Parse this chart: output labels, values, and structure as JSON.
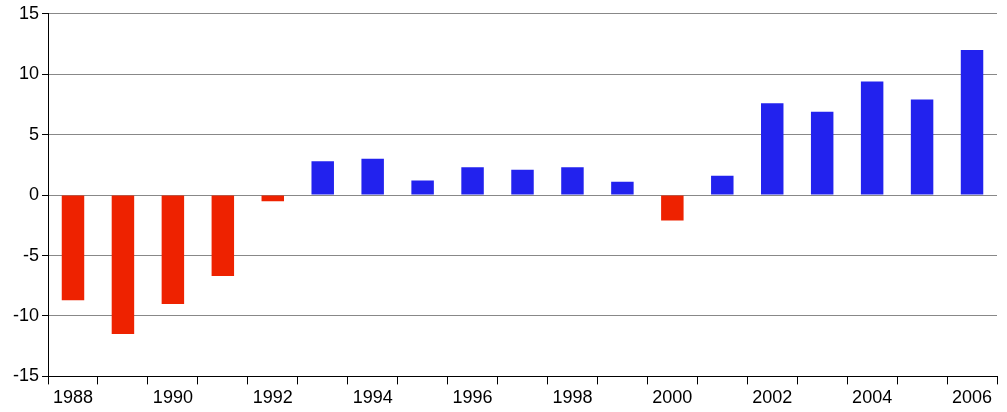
{
  "chart_data": {
    "type": "bar",
    "categories": [
      "1988",
      null,
      "1990",
      null,
      "1992",
      null,
      "1994",
      null,
      "1996",
      null,
      "1998",
      null,
      "2000",
      null,
      "2002",
      null,
      "2004",
      null,
      "2006"
    ],
    "values": [
      -8.7,
      -11.5,
      -9.0,
      -6.7,
      -0.5,
      2.8,
      3.0,
      1.2,
      2.3,
      2.1,
      2.3,
      1.1,
      -2.1,
      1.6,
      7.6,
      6.9,
      9.4,
      7.9,
      12.0
    ],
    "colors": [
      "#ee2200",
      "#ee2200",
      "#ee2200",
      "#ee2200",
      "#ee2200",
      "#2222ee",
      "#2222ee",
      "#2222ee",
      "#2222ee",
      "#2222ee",
      "#2222ee",
      "#2222ee",
      "#ee2200",
      "#2222ee",
      "#2222ee",
      "#2222ee",
      "#2222ee",
      "#2222ee",
      "#2222ee"
    ],
    "ylim": [
      -15,
      15
    ],
    "yticks": [
      -15,
      -10,
      -5,
      0,
      5,
      10,
      15
    ],
    "grid": "y",
    "legend": false
  }
}
